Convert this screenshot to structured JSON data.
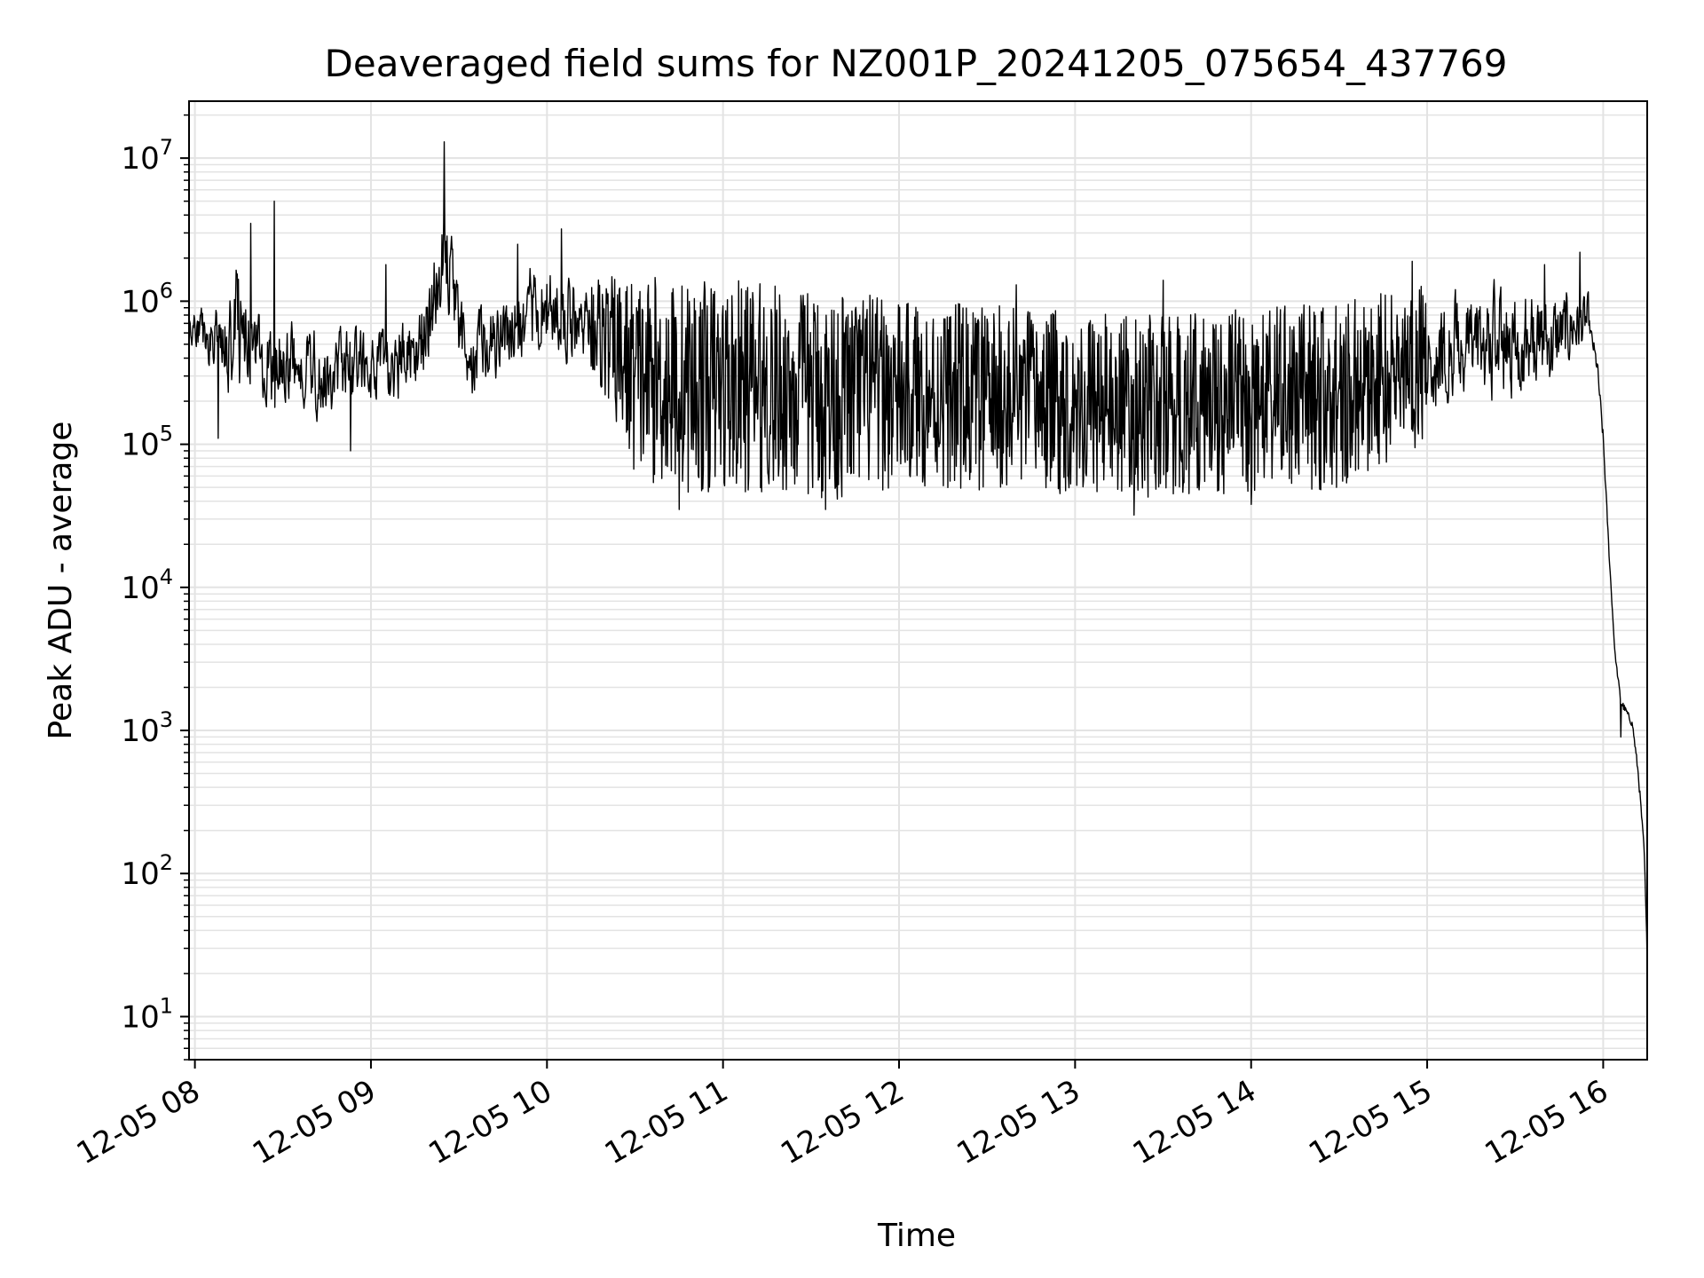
{
  "chart_data": {
    "type": "line",
    "title": "Deaveraged field sums for NZ001P_20241205_075654_437769",
    "xlabel": "Time",
    "ylabel": "Peak ADU - average",
    "yscale": "log",
    "ylim": [
      5,
      25000000
    ],
    "xlim": [
      "2024-12-05 07:58",
      "2024-12-05 16:15"
    ],
    "grid": true,
    "grid_minor": true,
    "line_color": "#000000",
    "grid_color": "#e3e3e3",
    "x_ticks": [
      {
        "time": "2024-12-05 08:00",
        "label": "12-05 08"
      },
      {
        "time": "2024-12-05 09:00",
        "label": "12-05 09"
      },
      {
        "time": "2024-12-05 10:00",
        "label": "12-05 10"
      },
      {
        "time": "2024-12-05 11:00",
        "label": "12-05 11"
      },
      {
        "time": "2024-12-05 12:00",
        "label": "12-05 12"
      },
      {
        "time": "2024-12-05 13:00",
        "label": "12-05 13"
      },
      {
        "time": "2024-12-05 14:00",
        "label": "12-05 14"
      },
      {
        "time": "2024-12-05 15:00",
        "label": "12-05 15"
      },
      {
        "time": "2024-12-05 16:00",
        "label": "12-05 16"
      }
    ],
    "y_ticks": [
      {
        "value": 10,
        "base": "10",
        "exp": "1"
      },
      {
        "value": 100,
        "base": "10",
        "exp": "2"
      },
      {
        "value": 1000,
        "base": "10",
        "exp": "3"
      },
      {
        "value": 10000,
        "base": "10",
        "exp": "4"
      },
      {
        "value": 100000,
        "base": "10",
        "exp": "5"
      },
      {
        "value": 1000000,
        "base": "10",
        "exp": "6"
      },
      {
        "value": 10000000,
        "base": "10",
        "exp": "7"
      }
    ],
    "series": [
      {
        "x": [
          "2024-12-05 07:58",
          "2024-12-05 08:05",
          "2024-12-05 08:10",
          "2024-12-05 08:15",
          "2024-12-05 08:20",
          "2024-12-05 08:25",
          "2024-12-05 08:30",
          "2024-12-05 08:35",
          "2024-12-05 08:40",
          "2024-12-05 08:45",
          "2024-12-05 08:50",
          "2024-12-05 08:55",
          "2024-12-05 09:00",
          "2024-12-05 09:05",
          "2024-12-05 09:10",
          "2024-12-05 09:15",
          "2024-12-05 09:20",
          "2024-12-05 09:25",
          "2024-12-05 09:30",
          "2024-12-05 09:35",
          "2024-12-05 09:40",
          "2024-12-05 09:45",
          "2024-12-05 09:50",
          "2024-12-05 09:55",
          "2024-12-05 10:00",
          "2024-12-05 10:05",
          "2024-12-05 10:10",
          "2024-12-05 10:15",
          "2024-12-05 10:20",
          "2024-12-05 10:30",
          "2024-12-05 10:40",
          "2024-12-05 10:50",
          "2024-12-05 11:00",
          "2024-12-05 11:10",
          "2024-12-05 11:20",
          "2024-12-05 11:30",
          "2024-12-05 11:40",
          "2024-12-05 11:50",
          "2024-12-05 12:00",
          "2024-12-05 12:15",
          "2024-12-05 12:30",
          "2024-12-05 12:45",
          "2024-12-05 13:00",
          "2024-12-05 13:15",
          "2024-12-05 13:30",
          "2024-12-05 13:45",
          "2024-12-05 14:00",
          "2024-12-05 14:15",
          "2024-12-05 14:30",
          "2024-12-05 14:40",
          "2024-12-05 14:50",
          "2024-12-05 15:00",
          "2024-12-05 15:10",
          "2024-12-05 15:20",
          "2024-12-05 15:30",
          "2024-12-05 15:40",
          "2024-12-05 15:50",
          "2024-12-05 15:55",
          "2024-12-05 15:58",
          "2024-12-05 16:00",
          "2024-12-05 16:02",
          "2024-12-05 16:04",
          "2024-12-05 16:06",
          "2024-12-05 16:08",
          "2024-12-05 16:10",
          "2024-12-05 16:12",
          "2024-12-05 16:14",
          "2024-12-05 16:15"
        ],
        "lows": [
          450000,
          300000,
          200000,
          150000,
          250000,
          120000,
          150000,
          150000,
          130000,
          130000,
          130000,
          150000,
          150000,
          150000,
          150000,
          180000,
          250000,
          700000,
          200000,
          150000,
          200000,
          250000,
          300000,
          300000,
          350000,
          300000,
          300000,
          300000,
          200000,
          60000,
          50000,
          45000,
          45000,
          45000,
          45000,
          40000,
          40000,
          45000,
          50000,
          50000,
          45000,
          45000,
          45000,
          45000,
          40000,
          45000,
          45000,
          45000,
          50000,
          60000,
          80000,
          100000,
          150000,
          150000,
          150000,
          150000,
          300000,
          400000,
          150000,
          60000,
          12000,
          3000,
          1000,
          1000,
          800,
          300,
          100,
          10
        ],
        "highs": [
          900000,
          1100000,
          1200000,
          3000000,
          1200000,
          1100000,
          1000000,
          800000,
          1000000,
          700000,
          1000000,
          900000,
          700000,
          800000,
          900000,
          1000000,
          2500000,
          8000000,
          1500000,
          1300000,
          1500000,
          1700000,
          2000000,
          2500000,
          2500000,
          2200000,
          2000000,
          1700000,
          1500000,
          1500000,
          1500000,
          1400000,
          1400000,
          1400000,
          1300000,
          1200000,
          1200000,
          1100000,
          1000000,
          1000000,
          950000,
          900000,
          850000,
          800000,
          800000,
          850000,
          900000,
          950000,
          1000000,
          1100000,
          1300000,
          1500000,
          1600000,
          1700000,
          1700000,
          1600000,
          1500000,
          1300000,
          800000,
          200000,
          25000,
          4000,
          2500,
          1800,
          1500,
          800,
          200,
          60
        ],
        "peaks": [
          {
            "time": "2024-12-05 08:19",
            "value": 3500000
          },
          {
            "time": "2024-12-05 08:27",
            "value": 5000000
          },
          {
            "time": "2024-12-05 09:05",
            "value": 1800000
          },
          {
            "time": "2024-12-05 09:25",
            "value": 13000000
          },
          {
            "time": "2024-12-05 09:50",
            "value": 2500000
          },
          {
            "time": "2024-12-05 10:05",
            "value": 3200000
          },
          {
            "time": "2024-12-05 11:50",
            "value": 1100000
          },
          {
            "time": "2024-12-05 12:40",
            "value": 1300000
          },
          {
            "time": "2024-12-05 13:30",
            "value": 1400000
          },
          {
            "time": "2024-12-05 14:55",
            "value": 1900000
          },
          {
            "time": "2024-12-05 15:40",
            "value": 1800000
          },
          {
            "time": "2024-12-05 15:52",
            "value": 2200000
          }
        ],
        "dips": [
          {
            "time": "2024-12-05 08:08",
            "value": 110000
          },
          {
            "time": "2024-12-05 08:53",
            "value": 90000
          },
          {
            "time": "2024-12-05 10:45",
            "value": 35000
          },
          {
            "time": "2024-12-05 11:35",
            "value": 35000
          },
          {
            "time": "2024-12-05 13:20",
            "value": 32000
          },
          {
            "time": "2024-12-05 14:00",
            "value": 38000
          },
          {
            "time": "2024-12-05 16:06",
            "value": 900
          }
        ]
      }
    ]
  }
}
